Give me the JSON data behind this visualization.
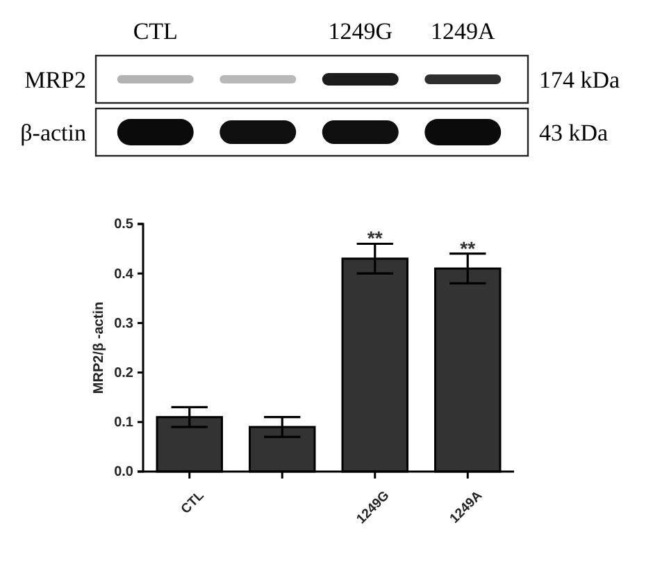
{
  "chart_data": {
    "type": "bar",
    "categories": [
      "CTL",
      null,
      "1249G",
      "1249A"
    ],
    "values": [
      0.11,
      0.09,
      0.43,
      0.41
    ],
    "errors": [
      0.02,
      0.02,
      0.03,
      0.03
    ],
    "color": "#333333",
    "ylabel": "MRP2/β -actin",
    "ylim": [
      0,
      0.5
    ],
    "yticks": [
      {
        "value": 0,
        "label": "0.0"
      },
      0.1,
      0.2,
      0.3,
      0.4,
      0.5
    ],
    "annotations": [
      "MRP2",
      "174 kDa",
      "β-actin",
      "43 kDa",
      {
        "text": "**",
        "x": "1249G",
        "y": 0.46
      },
      {
        "text": "**",
        "x": "1249A",
        "y": 0.44
      }
    ]
  }
}
